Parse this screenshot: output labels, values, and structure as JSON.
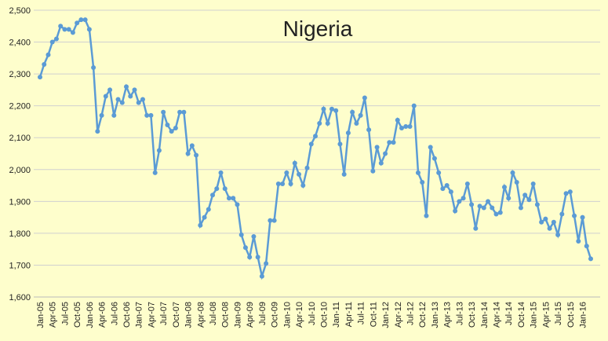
{
  "chart_data": {
    "type": "line",
    "title": "Nigeria",
    "categories": [
      "Jan-05",
      null,
      null,
      "Apr-05",
      null,
      null,
      "Jul-05",
      null,
      null,
      "Oct-05",
      null,
      null,
      "Jan-06",
      null,
      null,
      "Apr-06",
      null,
      null,
      "Jul-06",
      null,
      null,
      "Oct-06",
      null,
      null,
      "Jan-07",
      null,
      null,
      "Apr-07",
      null,
      null,
      "Jul-07",
      null,
      null,
      "Oct-07",
      null,
      null,
      "Jan-08",
      null,
      null,
      "Apr-08",
      null,
      null,
      "Jul-08",
      null,
      null,
      "Oct-08",
      null,
      null,
      "Jan-09",
      null,
      null,
      "Apr-09",
      null,
      null,
      "Jul-09",
      null,
      null,
      "Oct-09",
      null,
      null,
      "Jan-10",
      null,
      null,
      "Apr-10",
      null,
      null,
      "Jul-10",
      null,
      null,
      "Oct-10",
      null,
      null,
      "Jan-11",
      null,
      null,
      "Apr-11",
      null,
      null,
      "Jul-11",
      null,
      null,
      "Oct-11",
      null,
      null,
      "Jan-12",
      null,
      null,
      "Apr-12",
      null,
      null,
      "Jul-12",
      null,
      null,
      "Oct-12",
      null,
      null,
      "Jan-13",
      null,
      null,
      "Apr-13",
      null,
      null,
      "Jul-13",
      null,
      null,
      "Oct-13",
      null,
      null,
      "Jan-14",
      null,
      null,
      "Apr-14",
      null,
      null,
      "Jul-14",
      null,
      null,
      "Oct-14",
      null,
      null,
      "Jan-15",
      null,
      null,
      "Apr-15",
      null,
      null,
      "Jul-15",
      null,
      null,
      "Oct-15",
      null,
      null,
      "Jan-16",
      null,
      null
    ],
    "series": [
      {
        "name": "Nigeria",
        "color": "#5b9bd5",
        "values": [
          2290,
          2330,
          2360,
          2400,
          2410,
          2450,
          2440,
          2440,
          2430,
          2460,
          2470,
          2470,
          2440,
          2320,
          2120,
          2170,
          2230,
          2250,
          2170,
          2220,
          2210,
          2260,
          2230,
          2250,
          2210,
          2220,
          2170,
          2170,
          1990,
          2060,
          2180,
          2140,
          2120,
          2130,
          2180,
          2180,
          2050,
          2075,
          2045,
          1825,
          1850,
          1875,
          1920,
          1940,
          1990,
          1940,
          1910,
          1910,
          1890,
          1795,
          1755,
          1725,
          1790,
          1725,
          1665,
          1705,
          1840,
          1840,
          1955,
          1955,
          1990,
          1955,
          2020,
          1985,
          1950,
          2005,
          2080,
          2105,
          2145,
          2190,
          2145,
          2190,
          2185,
          2080,
          1985,
          2115,
          2180,
          2145,
          2170,
          2225,
          2125,
          1995,
          2070,
          2020,
          2050,
          2085,
          2085,
          2155,
          2130,
          2135,
          2135,
          2200,
          1990,
          1960,
          1855,
          2070,
          2035,
          1990,
          1940,
          1950,
          1930,
          1870,
          1900,
          1910,
          1955,
          1890,
          1815,
          1885,
          1880,
          1900,
          1880,
          1860,
          1865,
          1945,
          1910,
          1990,
          1960,
          1880,
          1920,
          1905,
          1955,
          1890,
          1835,
          1845,
          1815,
          1835,
          1795,
          1860,
          1925,
          1930,
          1855,
          1775,
          1850,
          1760,
          1720
        ]
      }
    ],
    "ylim": [
      1600,
      2500
    ],
    "yticks": [
      {
        "value": 1600,
        "label": "1,600"
      },
      {
        "value": 1700,
        "label": "1,700"
      },
      {
        "value": 1800,
        "label": "1,800"
      },
      {
        "value": 1900,
        "label": "1,900"
      },
      {
        "value": 2000,
        "label": "2,000"
      },
      {
        "value": 2100,
        "label": "2,100"
      },
      {
        "value": 2200,
        "label": "2,200"
      },
      {
        "value": 2300,
        "label": "2,300"
      },
      {
        "value": 2400,
        "label": "2,400"
      },
      {
        "value": 2500,
        "label": "2,500"
      }
    ],
    "grid": true
  }
}
